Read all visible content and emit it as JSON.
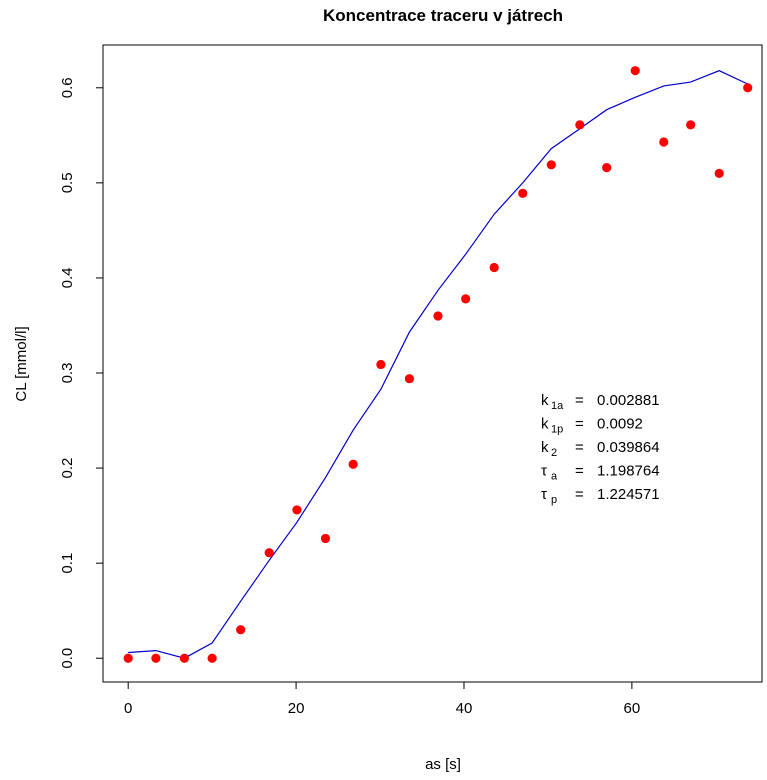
{
  "chart_data": {
    "type": "scatter",
    "title": "Koncentrace traceru v játrech",
    "xlabel": "as [s]",
    "ylabel": "CL [mmol/l]",
    "xlim": [
      -3,
      75.5
    ],
    "ylim": [
      -0.025,
      0.645
    ],
    "x_ticks": [
      0,
      20,
      40,
      60
    ],
    "y_ticks": [
      0.0,
      0.1,
      0.2,
      0.3,
      0.4,
      0.5,
      0.6
    ],
    "x_tick_labels": [
      "0",
      "20",
      "40",
      "60"
    ],
    "y_tick_labels": [
      "0.0",
      "0.1",
      "0.2",
      "0.3",
      "0.4",
      "0.5",
      "0.6"
    ],
    "grid": false,
    "colors": {
      "points": "#ff0000",
      "fit": "#0000cc"
    },
    "series": [
      {
        "kind": "points",
        "x": [
          0,
          3.3,
          6.7,
          10,
          13.4,
          16.8,
          20.1,
          23.5,
          26.8,
          30.1,
          33.5,
          36.9,
          40.2,
          43.6,
          47,
          50.4,
          53.8,
          57,
          60.4,
          63.8,
          67,
          70.4,
          73.8
        ],
        "y": [
          0.0,
          0.0,
          0.0,
          0.0,
          0.03,
          0.111,
          0.156,
          0.126,
          0.204,
          0.309,
          0.294,
          0.36,
          0.378,
          0.411,
          0.489,
          0.519,
          0.561,
          0.516,
          0.618,
          0.543,
          0.561,
          0.51,
          0.6
        ]
      },
      {
        "kind": "fit",
        "x": [
          0,
          3.3,
          6.7,
          10,
          13.4,
          16.8,
          20.1,
          23.5,
          26.8,
          30.1,
          33.5,
          36.9,
          40.2,
          43.6,
          47,
          50.4,
          53.8,
          57,
          60.4,
          63.8,
          67,
          70.4,
          73.8
        ],
        "y": [
          0.006,
          0.008,
          0.0,
          0.016,
          0.06,
          0.103,
          0.143,
          0.19,
          0.24,
          0.283,
          0.343,
          0.387,
          0.425,
          0.467,
          0.5,
          0.536,
          0.557,
          0.577,
          0.59,
          0.602,
          0.606,
          0.618,
          0.604
        ]
      }
    ],
    "annotations": [
      {
        "sym": "k",
        "sub": "1a",
        "eq": "=",
        "val": "0.002881"
      },
      {
        "sym": "k",
        "sub": "1p",
        "eq": "=",
        "val": "0.0092"
      },
      {
        "sym": "k",
        "sub": "2",
        "eq": "=",
        "val": "0.039864"
      },
      {
        "sym": "τ",
        "sub": "a",
        "eq": "=",
        "val": "1.198764"
      },
      {
        "sym": "τ",
        "sub": "p",
        "eq": "=",
        "val": "1.224571"
      }
    ]
  }
}
